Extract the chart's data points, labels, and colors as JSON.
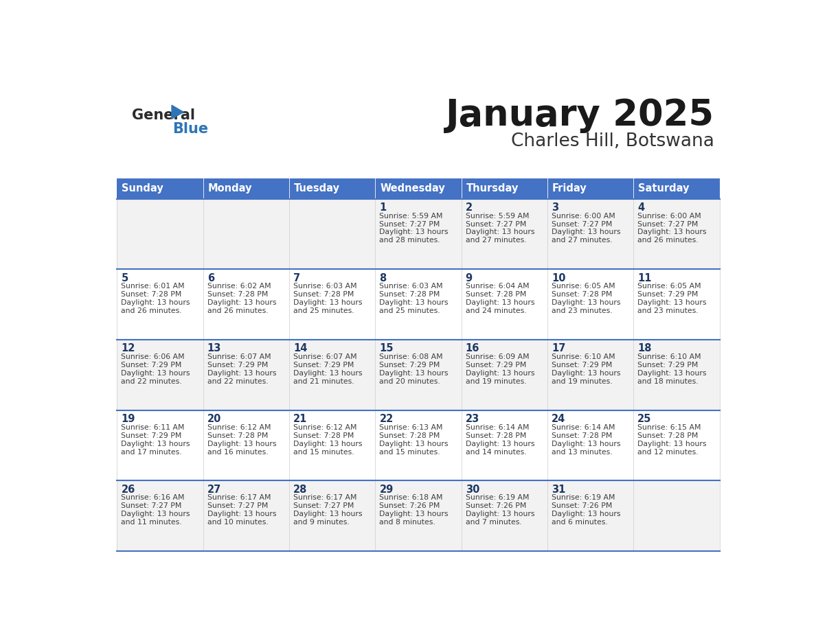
{
  "title": "January 2025",
  "subtitle": "Charles Hill, Botswana",
  "header_bg": "#4472C4",
  "header_text_color": "#FFFFFF",
  "day_headers": [
    "Sunday",
    "Monday",
    "Tuesday",
    "Wednesday",
    "Thursday",
    "Friday",
    "Saturday"
  ],
  "row_bg_odd": "#F2F2F2",
  "row_bg_even": "#FFFFFF",
  "cell_text_color": "#3D3D3D",
  "day_num_color": "#1F3864",
  "separator_color": "#4472C4",
  "calendar": [
    [
      {
        "day": "",
        "sunrise": "",
        "sunset": "",
        "daylight": ""
      },
      {
        "day": "",
        "sunrise": "",
        "sunset": "",
        "daylight": ""
      },
      {
        "day": "",
        "sunrise": "",
        "sunset": "",
        "daylight": ""
      },
      {
        "day": "1",
        "sunrise": "5:59 AM",
        "sunset": "7:27 PM",
        "daylight": "13 hours and 28 minutes."
      },
      {
        "day": "2",
        "sunrise": "5:59 AM",
        "sunset": "7:27 PM",
        "daylight": "13 hours and 27 minutes."
      },
      {
        "day": "3",
        "sunrise": "6:00 AM",
        "sunset": "7:27 PM",
        "daylight": "13 hours and 27 minutes."
      },
      {
        "day": "4",
        "sunrise": "6:00 AM",
        "sunset": "7:27 PM",
        "daylight": "13 hours and 26 minutes."
      }
    ],
    [
      {
        "day": "5",
        "sunrise": "6:01 AM",
        "sunset": "7:28 PM",
        "daylight": "13 hours and 26 minutes."
      },
      {
        "day": "6",
        "sunrise": "6:02 AM",
        "sunset": "7:28 PM",
        "daylight": "13 hours and 26 minutes."
      },
      {
        "day": "7",
        "sunrise": "6:03 AM",
        "sunset": "7:28 PM",
        "daylight": "13 hours and 25 minutes."
      },
      {
        "day": "8",
        "sunrise": "6:03 AM",
        "sunset": "7:28 PM",
        "daylight": "13 hours and 25 minutes."
      },
      {
        "day": "9",
        "sunrise": "6:04 AM",
        "sunset": "7:28 PM",
        "daylight": "13 hours and 24 minutes."
      },
      {
        "day": "10",
        "sunrise": "6:05 AM",
        "sunset": "7:28 PM",
        "daylight": "13 hours and 23 minutes."
      },
      {
        "day": "11",
        "sunrise": "6:05 AM",
        "sunset": "7:29 PM",
        "daylight": "13 hours and 23 minutes."
      }
    ],
    [
      {
        "day": "12",
        "sunrise": "6:06 AM",
        "sunset": "7:29 PM",
        "daylight": "13 hours and 22 minutes."
      },
      {
        "day": "13",
        "sunrise": "6:07 AM",
        "sunset": "7:29 PM",
        "daylight": "13 hours and 22 minutes."
      },
      {
        "day": "14",
        "sunrise": "6:07 AM",
        "sunset": "7:29 PM",
        "daylight": "13 hours and 21 minutes."
      },
      {
        "day": "15",
        "sunrise": "6:08 AM",
        "sunset": "7:29 PM",
        "daylight": "13 hours and 20 minutes."
      },
      {
        "day": "16",
        "sunrise": "6:09 AM",
        "sunset": "7:29 PM",
        "daylight": "13 hours and 19 minutes."
      },
      {
        "day": "17",
        "sunrise": "6:10 AM",
        "sunset": "7:29 PM",
        "daylight": "13 hours and 19 minutes."
      },
      {
        "day": "18",
        "sunrise": "6:10 AM",
        "sunset": "7:29 PM",
        "daylight": "13 hours and 18 minutes."
      }
    ],
    [
      {
        "day": "19",
        "sunrise": "6:11 AM",
        "sunset": "7:29 PM",
        "daylight": "13 hours and 17 minutes."
      },
      {
        "day": "20",
        "sunrise": "6:12 AM",
        "sunset": "7:28 PM",
        "daylight": "13 hours and 16 minutes."
      },
      {
        "day": "21",
        "sunrise": "6:12 AM",
        "sunset": "7:28 PM",
        "daylight": "13 hours and 15 minutes."
      },
      {
        "day": "22",
        "sunrise": "6:13 AM",
        "sunset": "7:28 PM",
        "daylight": "13 hours and 15 minutes."
      },
      {
        "day": "23",
        "sunrise": "6:14 AM",
        "sunset": "7:28 PM",
        "daylight": "13 hours and 14 minutes."
      },
      {
        "day": "24",
        "sunrise": "6:14 AM",
        "sunset": "7:28 PM",
        "daylight": "13 hours and 13 minutes."
      },
      {
        "day": "25",
        "sunrise": "6:15 AM",
        "sunset": "7:28 PM",
        "daylight": "13 hours and 12 minutes."
      }
    ],
    [
      {
        "day": "26",
        "sunrise": "6:16 AM",
        "sunset": "7:27 PM",
        "daylight": "13 hours and 11 minutes."
      },
      {
        "day": "27",
        "sunrise": "6:17 AM",
        "sunset": "7:27 PM",
        "daylight": "13 hours and 10 minutes."
      },
      {
        "day": "28",
        "sunrise": "6:17 AM",
        "sunset": "7:27 PM",
        "daylight": "13 hours and 9 minutes."
      },
      {
        "day": "29",
        "sunrise": "6:18 AM",
        "sunset": "7:26 PM",
        "daylight": "13 hours and 8 minutes."
      },
      {
        "day": "30",
        "sunrise": "6:19 AM",
        "sunset": "7:26 PM",
        "daylight": "13 hours and 7 minutes."
      },
      {
        "day": "31",
        "sunrise": "6:19 AM",
        "sunset": "7:26 PM",
        "daylight": "13 hours and 6 minutes."
      },
      {
        "day": "",
        "sunrise": "",
        "sunset": "",
        "daylight": ""
      }
    ]
  ]
}
